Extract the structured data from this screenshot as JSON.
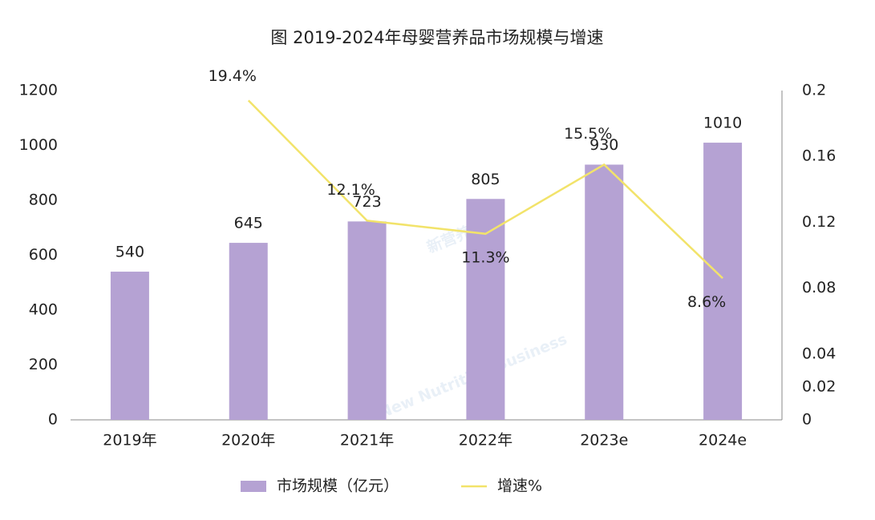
{
  "chart_data": {
    "type": "bar_line",
    "title": "图 2019-2024年母婴营养品市场规模与增速",
    "categories": [
      "2019年",
      "2020年",
      "2021年",
      "2022年",
      "2023e",
      "2024e"
    ],
    "series": [
      {
        "name": "市场规模（亿元）",
        "type": "bar",
        "color": "#b5a2d3",
        "values": [
          540,
          645,
          723,
          805,
          930,
          1010
        ]
      },
      {
        "name": "增速%",
        "type": "line",
        "axis": "y2",
        "color": "#f2e36a",
        "values": [
          null,
          0.194,
          0.121,
          0.113,
          0.155,
          0.086
        ],
        "value_labels": [
          null,
          "19.4%",
          "12.1%",
          "11.3%",
          "15.5%",
          "8.6%"
        ]
      }
    ],
    "ylim": [
      0,
      1200
    ],
    "yticks": [
      0,
      200,
      400,
      600,
      800,
      1000,
      1200
    ],
    "y2lim": [
      0,
      0.2
    ],
    "y2ticks": [
      0,
      0.02,
      0.04,
      0.08,
      0.12,
      0.16,
      0.2
    ],
    "grid": false,
    "legend": "bottom"
  },
  "watermark": {
    "brand": "新营养",
    "english": "New Nutrition Business"
  }
}
